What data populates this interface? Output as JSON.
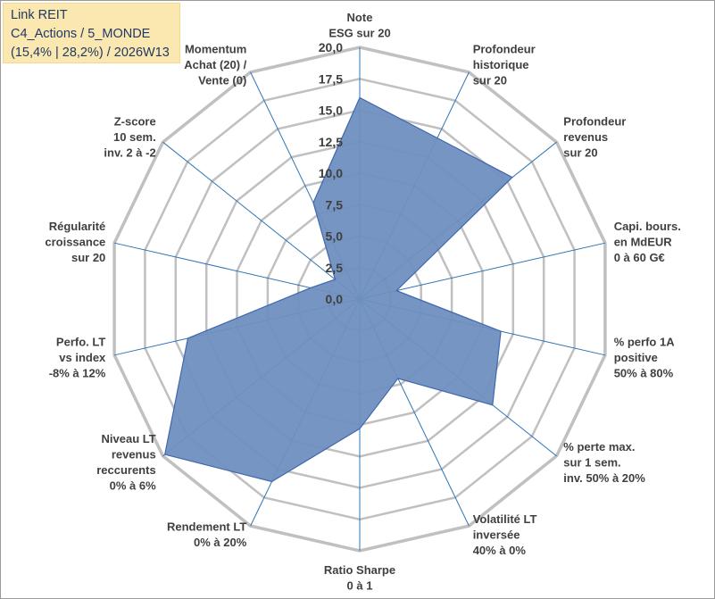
{
  "header": {
    "line1": "Link REIT",
    "line2": "C4_Actions / 5_MONDE",
    "line3": "(15,4% | 28,2%) / 2026W13"
  },
  "chart_data": {
    "type": "radar",
    "rmin": 0,
    "rmax": 20,
    "step": 2.5,
    "ticks": [
      "0,0",
      "2,5",
      "5,0",
      "7,5",
      "10,0",
      "12,5",
      "15,0",
      "17,5",
      "20,0"
    ],
    "colors": {
      "fill": "#6f8fbf",
      "stroke": "#3e67ad",
      "grid": "#c0c0c0",
      "spoke": "#2e75b6"
    },
    "axes": [
      {
        "label": [
          "Note",
          "ESG sur 20"
        ],
        "value": 16.0
      },
      {
        "label": [
          "Profondeur",
          "historique",
          "sur 20"
        ],
        "value": 14.2
      },
      {
        "label": [
          "Profondeur",
          "revenus",
          "sur 20"
        ],
        "value": 15.5
      },
      {
        "label": [
          "Capi. bours.",
          "en MdEUR",
          "0 à 60 G€"
        ],
        "value": 3.0
      },
      {
        "label": [
          "% perfo 1A",
          "positive",
          "50% à 80%"
        ],
        "value": 11.5
      },
      {
        "label": [
          "% perte max.",
          "sur 1 sem.",
          "inv. 50% à 20%"
        ],
        "value": 13.5
      },
      {
        "label": [
          "Volatilité LT",
          "inversée",
          "40% à 0%"
        ],
        "value": 7.0
      },
      {
        "label": [
          "Ratio Sharpe",
          "0 à 1"
        ],
        "value": 10.3
      },
      {
        "label": [
          "Rendement LT",
          "0% à 20%"
        ],
        "value": 16.1
      },
      {
        "label": [
          "Niveau LT",
          "revenus",
          "reccurents",
          "0% à 6%"
        ],
        "value": 19.8
      },
      {
        "label": [
          "Perfo. LT",
          "vs index",
          "-8% à 12%"
        ],
        "value": 14.0
      },
      {
        "label": [
          "Régularité",
          "croissance",
          "sur 20"
        ],
        "value": 4.0
      },
      {
        "label": [
          "Z-score",
          "10 sem.",
          "inv. 2 à -2"
        ],
        "value": 2.5
      },
      {
        "label": [
          "Momentum",
          "Achat (20) /",
          "Vente (0)"
        ],
        "value": 8.5
      }
    ]
  }
}
